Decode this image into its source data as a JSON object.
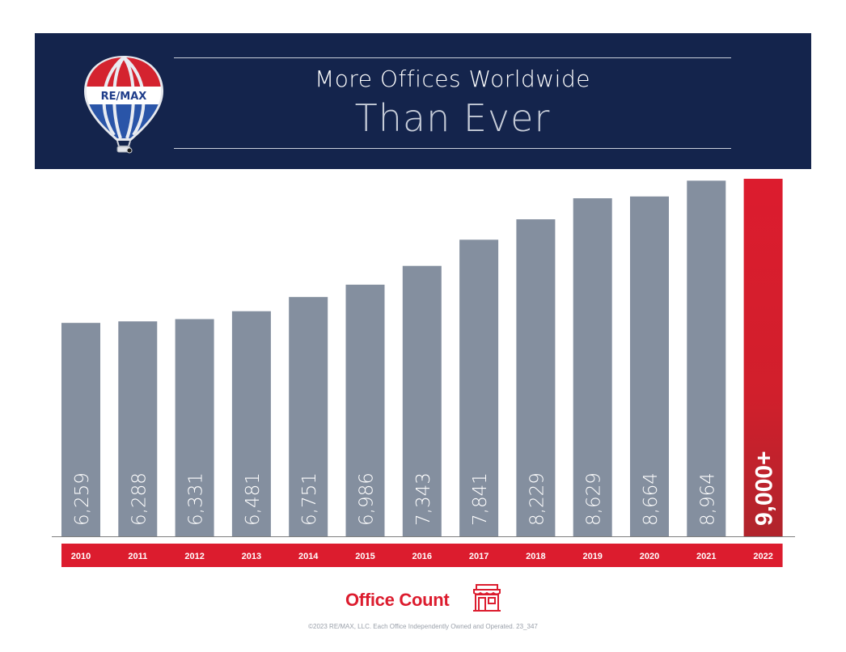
{
  "banner": {
    "logo_text": "RE/MAX",
    "title_line1": "More Offices Worldwide",
    "title_line2": "Than Ever"
  },
  "chart_data": {
    "type": "bar",
    "categories": [
      "2010",
      "2011",
      "2012",
      "2013",
      "2014",
      "2015",
      "2016",
      "2017",
      "2018",
      "2019",
      "2020",
      "2021",
      "2022"
    ],
    "values": [
      6259,
      6288,
      6331,
      6481,
      6751,
      6986,
      7343,
      7841,
      8229,
      8629,
      8664,
      8964,
      9000
    ],
    "value_labels": [
      "6,259",
      "6,288",
      "6,331",
      "6,481",
      "6,751",
      "6,986",
      "7,343",
      "7,841",
      "8,229",
      "8,629",
      "8,664",
      "8,964",
      "9,000+"
    ],
    "highlight_index": 12,
    "ylim": [
      2200,
      9000
    ],
    "title": "",
    "xlabel": "",
    "ylabel": "",
    "colors": {
      "bar": "#848f9f",
      "highlight": "#dc1c2e",
      "highlight_dark": "#b0242c",
      "year_band": "#dc1c2e",
      "axis": "#7f7f7f"
    }
  },
  "footer": {
    "label": "Office Count",
    "icon": "storefront-icon",
    "copyright": "©2023 RE/MAX, LLC. Each Office Independently Owned and Operated. 23_347"
  }
}
